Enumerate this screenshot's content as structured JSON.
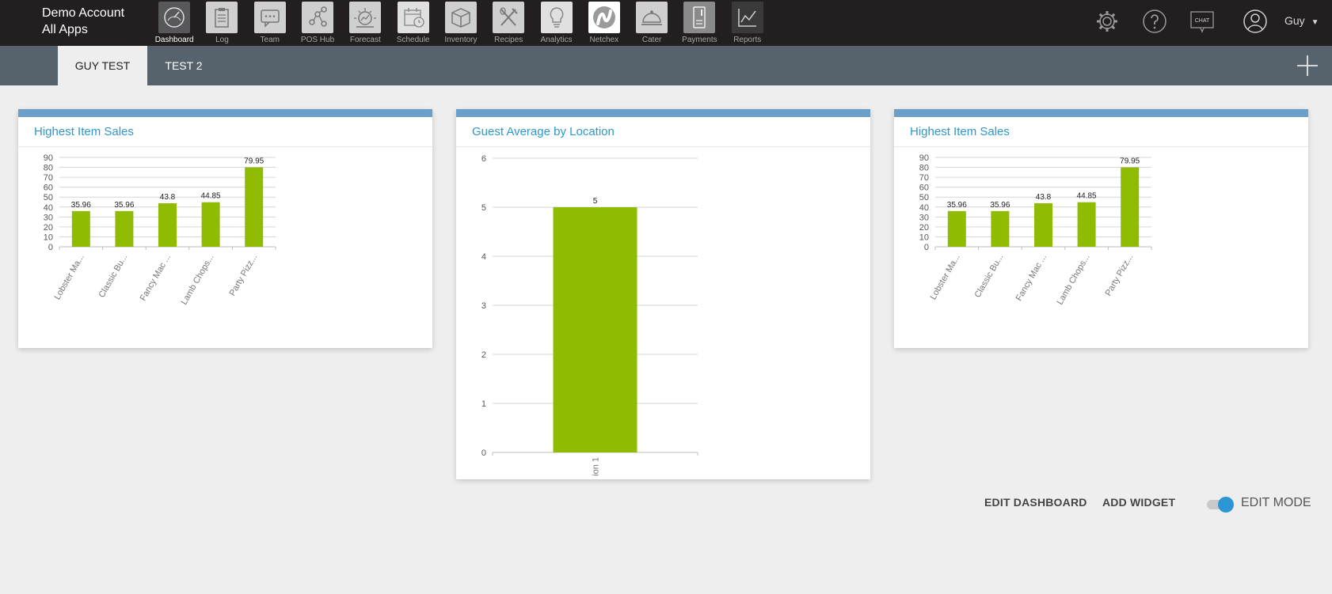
{
  "account": {
    "name": "Demo Account",
    "subtitle": "All Apps"
  },
  "apps": [
    {
      "label": "Dashboard",
      "icon": "dashboard-gauge-icon",
      "active": true
    },
    {
      "label": "Log",
      "icon": "clipboard-icon",
      "active": false
    },
    {
      "label": "Team",
      "icon": "chat-bubble-icon",
      "active": false
    },
    {
      "label": "POS Hub",
      "icon": "network-nodes-icon",
      "active": false
    },
    {
      "label": "Forecast",
      "icon": "forecast-icon",
      "active": false
    },
    {
      "label": "Schedule",
      "icon": "calendar-clock-icon",
      "active": false
    },
    {
      "label": "Inventory",
      "icon": "box-icon",
      "active": false
    },
    {
      "label": "Recipes",
      "icon": "utensils-icon",
      "active": false
    },
    {
      "label": "Analytics",
      "icon": "lightbulb-icon",
      "active": false
    },
    {
      "label": "Netchex",
      "icon": "netchex-logo-icon",
      "active": false
    },
    {
      "label": "Cater",
      "icon": "cloche-icon",
      "active": false
    },
    {
      "label": "Payments",
      "icon": "payments-card-icon",
      "active": false
    },
    {
      "label": "Reports",
      "icon": "line-chart-icon",
      "active": false
    }
  ],
  "header_right": {
    "chat_label": "CHAT",
    "user_name": "Guy"
  },
  "tabs": [
    {
      "label": "GUY TEST",
      "active": true
    },
    {
      "label": "TEST 2",
      "active": false
    }
  ],
  "widgets": [
    {
      "title": "Highest Item Sales",
      "chart_data": {
        "type": "bar",
        "categories": [
          "Lobster Ma...",
          "Classic Bu...",
          "Fancy Mac ...",
          "Lamb Chops...",
          "Party Pizz..."
        ],
        "values": [
          35.96,
          35.96,
          43.8,
          44.85,
          79.95
        ],
        "value_labels": [
          "35.96",
          "35.96",
          "43.8",
          "44.85",
          "79.95"
        ],
        "yticks": [
          "0",
          "10",
          "20",
          "30",
          "40",
          "50",
          "60",
          "70",
          "80",
          "90"
        ],
        "ylim": [
          0,
          90
        ],
        "grid": true,
        "bar_color": "#8fbc00"
      }
    },
    {
      "title": "Guest Average by Location",
      "chart_data": {
        "type": "bar",
        "categories": [
          "ion 1"
        ],
        "values": [
          5
        ],
        "value_labels": [
          "5"
        ],
        "yticks": [
          "0",
          "1",
          "2",
          "3",
          "4",
          "5",
          "6"
        ],
        "ylim": [
          0,
          6
        ],
        "grid": true,
        "bar_color": "#8fbc00"
      }
    },
    {
      "title": "Highest Item Sales",
      "chart_data": {
        "type": "bar",
        "categories": [
          "Lobster Ma...",
          "Classic Bu...",
          "Fancy Mac ...",
          "Lamb Chops...",
          "Party Pizz..."
        ],
        "values": [
          35.96,
          35.96,
          43.8,
          44.85,
          79.95
        ],
        "value_labels": [
          "35.96",
          "35.96",
          "43.8",
          "44.85",
          "79.95"
        ],
        "yticks": [
          "0",
          "10",
          "20",
          "30",
          "40",
          "50",
          "60",
          "70",
          "80",
          "90"
        ],
        "ylim": [
          0,
          90
        ],
        "grid": true,
        "bar_color": "#8fbc00"
      }
    }
  ],
  "actions": {
    "edit_dashboard": "EDIT DASHBOARD",
    "add_widget": "ADD WIDGET",
    "edit_mode": "EDIT MODE"
  },
  "colors": {
    "topbar": "#231f20",
    "tabbar": "#56636d",
    "accent_blue": "#2b98cf",
    "toggle_on": "#2b95d6"
  }
}
